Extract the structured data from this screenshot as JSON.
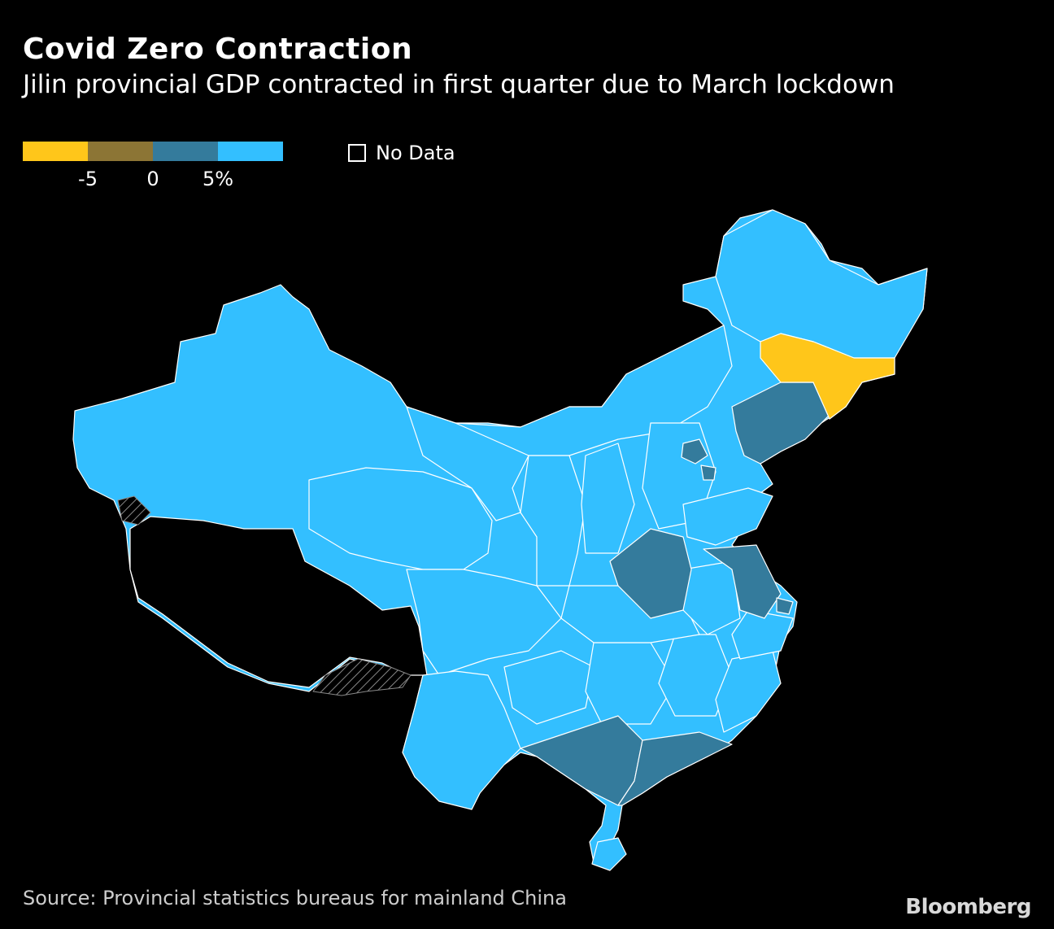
{
  "title": "Covid Zero Contraction",
  "subtitle": "Jilin provincial GDP contracted in first quarter due to March lockdown",
  "legend": {
    "colors": [
      "#FFC61A",
      "#8C7535",
      "#347B9C",
      "#33BFFF"
    ],
    "ticks": [
      "-5",
      "0",
      "5%"
    ],
    "nodata_label": "No Data"
  },
  "colors": {
    "light": "#33BFFF",
    "mid": "#347B9C",
    "low": "#FFC61A"
  },
  "source": "Source: Provincial statistics bureaus for mainland China",
  "brand": "Bloomberg"
}
